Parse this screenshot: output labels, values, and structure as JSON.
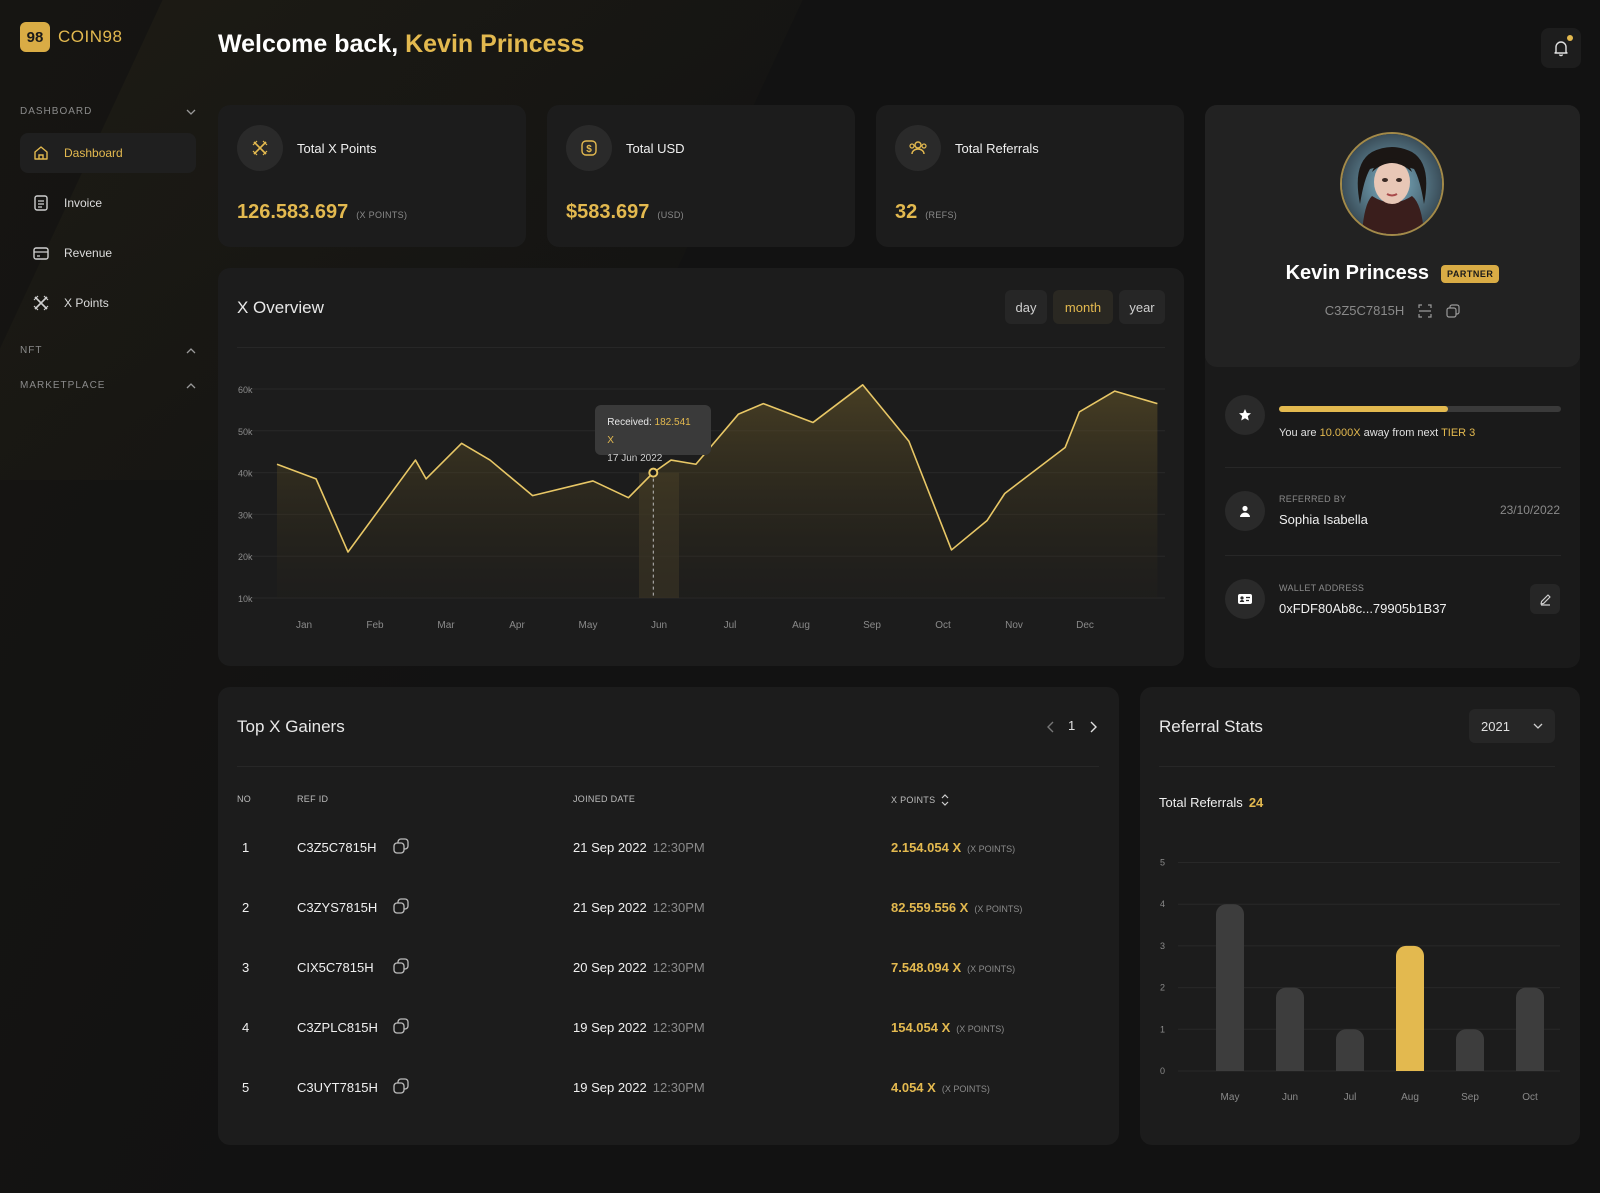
{
  "app": {
    "logo_mark": "98",
    "logo_text": "COIN98"
  },
  "sidebar": {
    "sections": [
      {
        "label": "DASHBOARD",
        "expanded": true
      },
      {
        "label": "NFT",
        "expanded": false
      },
      {
        "label": "MARKETPLACE",
        "expanded": false
      }
    ],
    "items": [
      {
        "label": "Dashboard",
        "icon": "home-icon",
        "active": true
      },
      {
        "label": "Invoice",
        "icon": "invoice-icon",
        "active": false
      },
      {
        "label": "Revenue",
        "icon": "card-icon",
        "active": false
      },
      {
        "label": "X Points",
        "icon": "x-icon",
        "active": false
      }
    ]
  },
  "header": {
    "welcome_prefix": "Welcome back, ",
    "user_name": "Kevin Princess",
    "notification_dot": true
  },
  "stats": [
    {
      "title": "Total X Points",
      "value": "126.583.697",
      "unit": "(X POINTS)",
      "icon": "x-icon"
    },
    {
      "title": "Total USD",
      "value": "$583.697",
      "unit": "(USD)",
      "icon": "dollar-icon"
    },
    {
      "title": "Total Referrals",
      "value": "32",
      "unit": "(REFS)",
      "icon": "users-icon"
    }
  ],
  "overview": {
    "title": "X Overview",
    "ranges": [
      "day",
      "month",
      "year"
    ],
    "active_range": "month",
    "tooltip": {
      "label": "Received: ",
      "value": "182.541 X",
      "date": "17 Jun 2022"
    }
  },
  "chart_data": [
    {
      "type": "area",
      "title": "X Overview",
      "x_ticks": [
        "Jan",
        "Feb",
        "Mar",
        "Apr",
        "May",
        "Jun",
        "Jul",
        "Aug",
        "Sep",
        "Oct",
        "Nov",
        "Dec"
      ],
      "y_ticks": [
        "10k",
        "20k",
        "30k",
        "40k",
        "50k",
        "60k"
      ],
      "ylim": [
        10000,
        60000
      ],
      "x": [
        0,
        0.55,
        1.0,
        1.95,
        2.1,
        2.6,
        3.0,
        3.6,
        4.45,
        4.95,
        5.3,
        5.55,
        5.9,
        6.5,
        6.85,
        7.55,
        8.25,
        8.9,
        9.5,
        10.0,
        10.25,
        11.1,
        11.3,
        11.8,
        12.4
      ],
      "values": [
        42000,
        38500,
        21000,
        43000,
        38500,
        47000,
        43000,
        34500,
        38000,
        34000,
        40000,
        43000,
        42000,
        54000,
        56500,
        52000,
        61000,
        47500,
        21500,
        28500,
        35000,
        46000,
        54500,
        59500,
        56500
      ],
      "highlight": {
        "x": 5.3,
        "value": 40000,
        "band": "Jun"
      },
      "grid": true
    },
    {
      "type": "bar",
      "title": "Referral Stats",
      "categories": [
        "May",
        "Jun",
        "Jul",
        "Aug",
        "Sep",
        "Oct"
      ],
      "values": [
        4,
        2,
        1,
        3,
        1,
        2
      ],
      "highlight_index": 3,
      "y_ticks": [
        "0",
        "1",
        "2",
        "3",
        "4",
        "5"
      ],
      "ylim": [
        0,
        5
      ],
      "grid": true
    }
  ],
  "profile": {
    "name": "Kevin Princess",
    "badge": "PARTNER",
    "id": "C3Z5C7815H",
    "tier": {
      "progress": 0.6,
      "text_prefix": "You are ",
      "amount": "10.000X",
      "text_mid": " away from next ",
      "next": "TIER 3"
    },
    "referred_by": {
      "label": "REFERRED BY",
      "name": "Sophia Isabella",
      "date": "23/10/2022"
    },
    "wallet": {
      "label": "WALLET ADDRESS",
      "address": "0xFDF80Ab8c...79905b1B37"
    }
  },
  "gainers": {
    "title": "Top X Gainers",
    "page": "1",
    "columns": [
      "NO",
      "REF ID",
      "JOINED DATE",
      "X POINTS"
    ],
    "rows": [
      {
        "no": "1",
        "ref": "C3Z5C7815H",
        "date": "21 Sep 2022",
        "time": "12:30PM",
        "points": "2.154.054 X",
        "unit": "(X POINTS)"
      },
      {
        "no": "2",
        "ref": "C3ZYS7815H",
        "date": "21 Sep 2022",
        "time": "12:30PM",
        "points": "82.559.556 X",
        "unit": "(X POINTS)"
      },
      {
        "no": "3",
        "ref": "CIX5C7815H",
        "date": "20 Sep 2022",
        "time": "12:30PM",
        "points": "7.548.094 X",
        "unit": "(X POINTS)"
      },
      {
        "no": "4",
        "ref": "C3ZPLC815H",
        "date": "19 Sep 2022",
        "time": "12:30PM",
        "points": "154.054 X",
        "unit": "(X POINTS)"
      },
      {
        "no": "5",
        "ref": "C3UYT7815H",
        "date": "19 Sep 2022",
        "time": "12:30PM",
        "points": "4.054 X",
        "unit": "(X POINTS)"
      }
    ]
  },
  "referral_stats": {
    "title": "Referral Stats",
    "year": "2021",
    "total_label": "Total Referrals",
    "total_value": "24"
  },
  "colors": {
    "accent": "#e3b94f",
    "card": "#1c1c1c",
    "bg": "#121212",
    "bar": "#3d3d3d"
  }
}
